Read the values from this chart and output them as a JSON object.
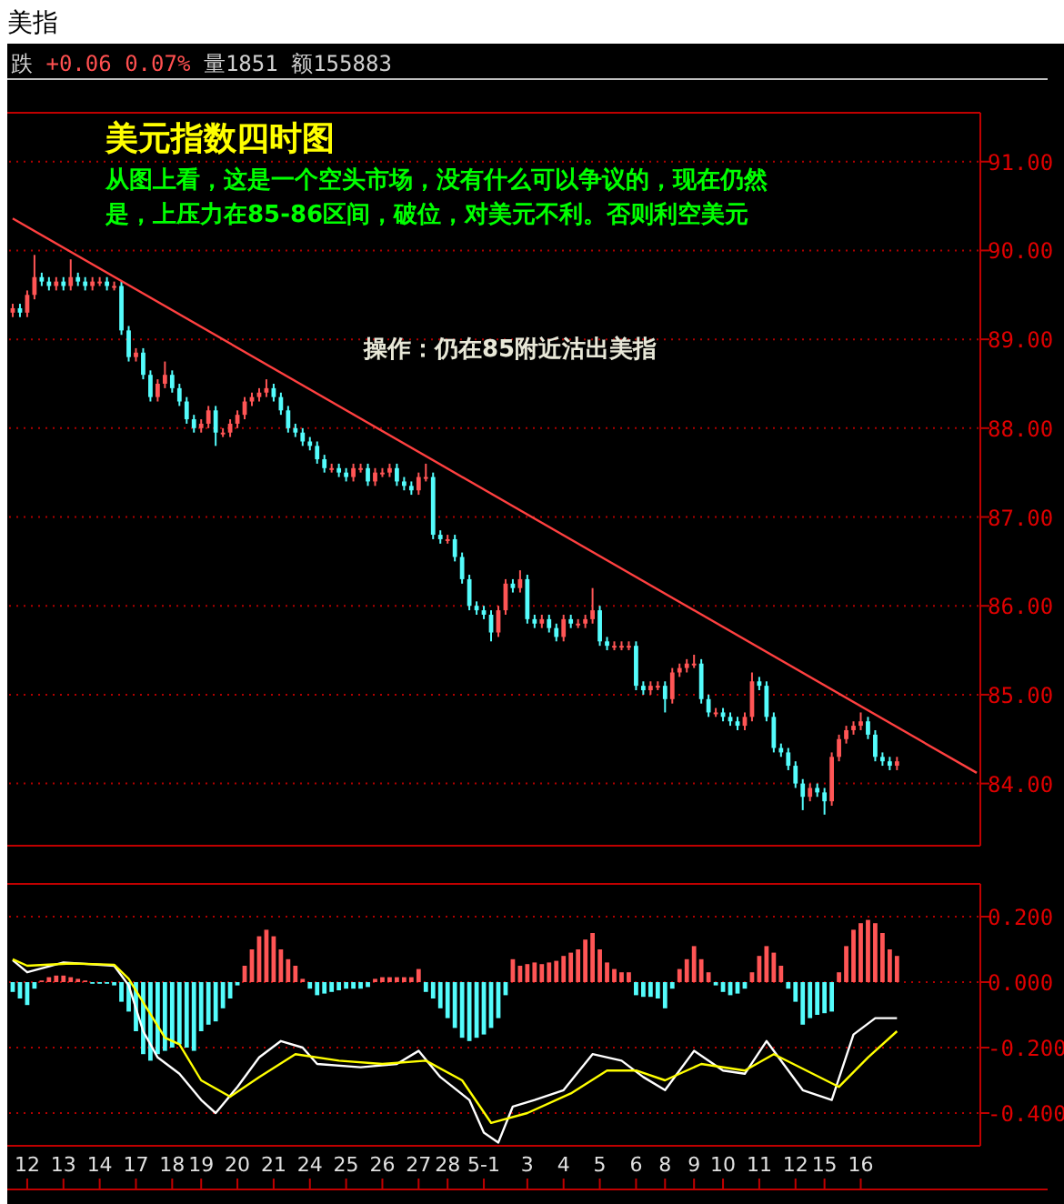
{
  "chart_data": [
    {
      "type": "candlestick",
      "title": "美指",
      "subtitle": "跌 +0.06 0.07% 量1851 额155883",
      "annotations": [
        "美元指数四时图",
        "从图上看，这是一个空头市场，没有什么可以争议的，现在仍然",
        "是，上压力在85-86区间，破位，对美元不利。否则利空美元",
        "操作：仍在85附近沽出美指"
      ],
      "ylim": [
        83.3,
        91.55
      ],
      "yticks": [
        {
          "value": 84,
          "label": "84.00"
        },
        {
          "value": 85,
          "label": "85.00"
        },
        {
          "value": 86,
          "label": "86.00"
        },
        {
          "value": 87,
          "label": "87.00"
        },
        {
          "value": 88,
          "label": "88.00"
        },
        {
          "value": 89,
          "label": "89.00"
        },
        {
          "value": 90,
          "label": "90.00"
        },
        {
          "value": 91,
          "label": "91.00"
        }
      ],
      "tick_labels": "y",
      "grid": "y",
      "categories": [
        null,
        null,
        null,
        null,
        null,
        null,
        null,
        null,
        null,
        null,
        null,
        null,
        null,
        null,
        null,
        null,
        null,
        null,
        null,
        null,
        null,
        null,
        null,
        null,
        null,
        null,
        null,
        null,
        null,
        null,
        null,
        null,
        null,
        null,
        null,
        null,
        null,
        null,
        null,
        null,
        null,
        null,
        null,
        null,
        null,
        null,
        null,
        null,
        null,
        null,
        null,
        null,
        null,
        null,
        null,
        null,
        null,
        null,
        null,
        null,
        null,
        null,
        null,
        null,
        null,
        null,
        null,
        null,
        null,
        null,
        null,
        null,
        null,
        null,
        null,
        null,
        null,
        null,
        null,
        null,
        null,
        null,
        null,
        null,
        null,
        null,
        null,
        null,
        null,
        null,
        null,
        null,
        null,
        null,
        null,
        null,
        null,
        null,
        null,
        null,
        null,
        null,
        null,
        null,
        null,
        null,
        null,
        null,
        null,
        null,
        null,
        null,
        null,
        null,
        null,
        null,
        null,
        null,
        null,
        null,
        null,
        null,
        null,
        null,
        null,
        null,
        null,
        null,
        null,
        null,
        null,
        null,
        null,
        null
      ],
      "ohlc": [
        [
          89.3,
          89.4,
          89.25,
          89.35
        ],
        [
          89.35,
          89.4,
          89.25,
          89.3
        ],
        [
          89.3,
          89.55,
          89.25,
          89.5
        ],
        [
          89.5,
          89.95,
          89.45,
          89.7
        ],
        [
          89.7,
          89.75,
          89.6,
          89.65
        ],
        [
          89.65,
          89.7,
          89.55,
          89.6
        ],
        [
          89.6,
          89.7,
          89.55,
          89.65
        ],
        [
          89.65,
          89.7,
          89.55,
          89.6
        ],
        [
          89.6,
          89.9,
          89.55,
          89.7
        ],
        [
          89.7,
          89.75,
          89.6,
          89.65
        ],
        [
          89.65,
          89.7,
          89.55,
          89.6
        ],
        [
          89.6,
          89.7,
          89.55,
          89.65
        ],
        [
          89.65,
          89.7,
          89.6,
          89.65
        ],
        [
          89.65,
          89.7,
          89.55,
          89.6
        ],
        [
          89.6,
          89.65,
          89.55,
          89.6
        ],
        [
          89.6,
          89.65,
          89.05,
          89.1
        ],
        [
          89.1,
          89.15,
          88.75,
          88.8
        ],
        [
          88.8,
          88.9,
          88.75,
          88.85
        ],
        [
          88.85,
          88.9,
          88.55,
          88.6
        ],
        [
          88.6,
          88.65,
          88.3,
          88.35
        ],
        [
          88.35,
          88.55,
          88.3,
          88.5
        ],
        [
          88.5,
          88.75,
          88.45,
          88.6
        ],
        [
          88.6,
          88.65,
          88.4,
          88.45
        ],
        [
          88.45,
          88.5,
          88.25,
          88.3
        ],
        [
          88.3,
          88.35,
          88.05,
          88.1
        ],
        [
          88.1,
          88.15,
          87.95,
          88.0
        ],
        [
          88.0,
          88.1,
          87.95,
          88.05
        ],
        [
          88.05,
          88.25,
          88.0,
          88.2
        ],
        [
          88.2,
          88.25,
          87.8,
          87.95
        ],
        [
          87.95,
          88.0,
          87.9,
          87.95
        ],
        [
          87.95,
          88.1,
          87.9,
          88.05
        ],
        [
          88.05,
          88.2,
          88.0,
          88.15
        ],
        [
          88.15,
          88.35,
          88.1,
          88.3
        ],
        [
          88.3,
          88.4,
          88.25,
          88.35
        ],
        [
          88.35,
          88.45,
          88.3,
          88.4
        ],
        [
          88.4,
          88.55,
          88.35,
          88.45
        ],
        [
          88.45,
          88.5,
          88.3,
          88.35
        ],
        [
          88.35,
          88.4,
          88.15,
          88.2
        ],
        [
          88.2,
          88.25,
          87.95,
          88.0
        ],
        [
          88.0,
          88.05,
          87.9,
          87.95
        ],
        [
          87.95,
          88.0,
          87.8,
          87.85
        ],
        [
          87.85,
          87.9,
          87.75,
          87.8
        ],
        [
          87.8,
          87.85,
          87.6,
          87.65
        ],
        [
          87.65,
          87.7,
          87.5,
          87.55
        ],
        [
          87.55,
          87.6,
          87.5,
          87.55
        ],
        [
          87.55,
          87.6,
          87.45,
          87.5
        ],
        [
          87.5,
          87.55,
          87.4,
          87.45
        ],
        [
          87.45,
          87.6,
          87.4,
          87.55
        ],
        [
          87.55,
          87.6,
          87.5,
          87.55
        ],
        [
          87.55,
          87.6,
          87.35,
          87.4
        ],
        [
          87.4,
          87.55,
          87.35,
          87.5
        ],
        [
          87.5,
          87.55,
          87.45,
          87.5
        ],
        [
          87.5,
          87.6,
          87.45,
          87.55
        ],
        [
          87.55,
          87.6,
          87.35,
          87.4
        ],
        [
          87.4,
          87.45,
          87.3,
          87.35
        ],
        [
          87.35,
          87.4,
          87.25,
          87.3
        ],
        [
          87.3,
          87.5,
          87.25,
          87.45
        ],
        [
          87.45,
          87.6,
          87.4,
          87.45
        ],
        [
          87.45,
          87.5,
          86.75,
          86.8
        ],
        [
          86.8,
          86.85,
          86.7,
          86.75
        ],
        [
          86.75,
          86.8,
          86.7,
          86.75
        ],
        [
          86.75,
          86.8,
          86.5,
          86.55
        ],
        [
          86.55,
          86.6,
          86.25,
          86.3
        ],
        [
          86.3,
          86.35,
          85.95,
          86.0
        ],
        [
          86.0,
          86.05,
          85.9,
          85.95
        ],
        [
          85.95,
          86.0,
          85.85,
          85.9
        ],
        [
          85.9,
          85.95,
          85.6,
          85.7
        ],
        [
          85.7,
          86.0,
          85.65,
          85.95
        ],
        [
          85.95,
          86.3,
          85.9,
          86.25
        ],
        [
          86.25,
          86.3,
          86.15,
          86.2
        ],
        [
          86.2,
          86.4,
          86.15,
          86.3
        ],
        [
          86.3,
          86.35,
          85.8,
          85.85
        ],
        [
          85.85,
          85.9,
          85.75,
          85.8
        ],
        [
          85.8,
          85.9,
          85.75,
          85.85
        ],
        [
          85.85,
          85.9,
          85.7,
          85.75
        ],
        [
          85.75,
          85.8,
          85.6,
          85.65
        ],
        [
          85.65,
          85.9,
          85.6,
          85.85
        ],
        [
          85.85,
          85.9,
          85.75,
          85.8
        ],
        [
          85.8,
          85.85,
          85.75,
          85.8
        ],
        [
          85.8,
          85.9,
          85.75,
          85.85
        ],
        [
          85.85,
          86.2,
          85.8,
          85.95
        ],
        [
          85.95,
          86.0,
          85.55,
          85.6
        ],
        [
          85.6,
          85.65,
          85.5,
          85.55
        ],
        [
          85.55,
          85.6,
          85.5,
          85.55
        ],
        [
          85.55,
          85.6,
          85.5,
          85.55
        ],
        [
          85.55,
          85.6,
          85.5,
          85.55
        ],
        [
          85.55,
          85.6,
          85.05,
          85.1
        ],
        [
          85.1,
          85.15,
          85.0,
          85.05
        ],
        [
          85.05,
          85.15,
          85.0,
          85.1
        ],
        [
          85.1,
          85.15,
          85.05,
          85.1
        ],
        [
          85.1,
          85.15,
          84.8,
          84.95
        ],
        [
          84.95,
          85.3,
          84.9,
          85.25
        ],
        [
          85.25,
          85.35,
          85.2,
          85.3
        ],
        [
          85.3,
          85.4,
          85.25,
          85.35
        ],
        [
          85.35,
          85.45,
          85.3,
          85.35
        ],
        [
          85.35,
          85.4,
          84.9,
          84.95
        ],
        [
          84.95,
          85.0,
          84.75,
          84.8
        ],
        [
          84.8,
          84.85,
          84.75,
          84.8
        ],
        [
          84.8,
          84.85,
          84.7,
          84.75
        ],
        [
          84.75,
          84.8,
          84.65,
          84.7
        ],
        [
          84.7,
          84.75,
          84.6,
          84.65
        ],
        [
          84.65,
          84.8,
          84.6,
          84.75
        ],
        [
          84.75,
          85.25,
          84.7,
          85.15
        ],
        [
          85.15,
          85.2,
          85.05,
          85.1
        ],
        [
          85.1,
          85.15,
          84.7,
          84.75
        ],
        [
          84.75,
          84.8,
          84.35,
          84.4
        ],
        [
          84.4,
          84.45,
          84.3,
          84.35
        ],
        [
          84.35,
          84.4,
          84.15,
          84.2
        ],
        [
          84.2,
          84.25,
          83.95,
          84.0
        ],
        [
          84.0,
          84.05,
          83.7,
          83.85
        ],
        [
          83.85,
          84.0,
          83.8,
          83.95
        ],
        [
          83.95,
          84.0,
          83.85,
          83.9
        ],
        [
          83.9,
          83.95,
          83.65,
          83.8
        ],
        [
          83.8,
          84.35,
          83.75,
          84.3
        ],
        [
          84.3,
          84.55,
          84.25,
          84.5
        ],
        [
          84.5,
          84.65,
          84.45,
          84.6
        ],
        [
          84.6,
          84.7,
          84.55,
          84.65
        ],
        [
          84.65,
          84.8,
          84.6,
          84.7
        ],
        [
          84.7,
          84.75,
          84.5,
          84.55
        ],
        [
          84.55,
          84.6,
          84.25,
          84.3
        ],
        [
          84.3,
          84.35,
          84.2,
          84.25
        ],
        [
          84.25,
          84.3,
          84.15,
          84.2
        ],
        [
          84.2,
          84.3,
          84.15,
          84.25
        ],
        null,
        null,
        null,
        null,
        null,
        null,
        null,
        null,
        null,
        null,
        null
      ],
      "series": [
        {
          "type": "line",
          "color": "#ff4040",
          "values": [
            90.36,
            null,
            null,
            null,
            null,
            null,
            null,
            null,
            null,
            null,
            null,
            null,
            null,
            null,
            null,
            null,
            null,
            null,
            null,
            null,
            null,
            null,
            null,
            null,
            null,
            null,
            null,
            null,
            null,
            null,
            null,
            null,
            null,
            null,
            null,
            null,
            null,
            null,
            null,
            null,
            null,
            null,
            null,
            null,
            null,
            null,
            null,
            null,
            null,
            null,
            null,
            null,
            null,
            null,
            null,
            null,
            null,
            null,
            null,
            null,
            null,
            null,
            null,
            null,
            null,
            null,
            null,
            null,
            null,
            null,
            null,
            null,
            null,
            null,
            null,
            null,
            null,
            null,
            null,
            null,
            null,
            null,
            null,
            null,
            null,
            null,
            null,
            null,
            null,
            null,
            null,
            null,
            null,
            null,
            null,
            null,
            null,
            null,
            null,
            null,
            null,
            null,
            null,
            null,
            null,
            null,
            null,
            null,
            null,
            null,
            null,
            null,
            null,
            null,
            null,
            null,
            null,
            null,
            null,
            null,
            null,
            null,
            null,
            null,
            null,
            null,
            null,
            null,
            null,
            null,
            null,
            null,
            null,
            84.12
          ]
        }
      ]
    },
    {
      "type": "bar",
      "ylim": [
        -0.5,
        0.3
      ],
      "yticks": [
        {
          "value": 0.2,
          "label": "0.200"
        },
        {
          "value": 0,
          "label": "0.000"
        },
        {
          "value": -0.2,
          "label": "-0.200"
        },
        {
          "value": -0.4,
          "label": "-0.400"
        }
      ],
      "grid": "y",
      "categories": [
        null,
        null,
        "12",
        null,
        null,
        null,
        null,
        "13",
        null,
        null,
        null,
        null,
        "14",
        null,
        null,
        null,
        null,
        "17",
        null,
        null,
        null,
        null,
        "18",
        null,
        null,
        null,
        "19",
        null,
        null,
        null,
        null,
        "20",
        null,
        null,
        null,
        null,
        "21",
        null,
        null,
        null,
        null,
        "24",
        null,
        null,
        null,
        null,
        "25",
        null,
        null,
        null,
        null,
        "26",
        null,
        null,
        null,
        null,
        "27",
        null,
        null,
        null,
        "28",
        null,
        null,
        null,
        null,
        "5-1",
        null,
        null,
        null,
        null,
        null,
        "3",
        null,
        null,
        null,
        null,
        "4",
        null,
        null,
        null,
        null,
        "5",
        null,
        null,
        null,
        null,
        "6",
        null,
        null,
        null,
        "8",
        null,
        null,
        null,
        "9",
        null,
        null,
        null,
        "10",
        null,
        null,
        null,
        null,
        "11",
        null,
        null,
        null,
        null,
        "12",
        null,
        null,
        null,
        "15",
        null,
        null,
        null,
        null,
        "16",
        null,
        null,
        null,
        null,
        null,
        null,
        null,
        null,
        null,
        null,
        null,
        null,
        null,
        null,
        null,
        null
      ],
      "series": [
        {
          "type": "bar",
          "values": [
            -0.03,
            -0.05,
            -0.07,
            -0.02,
            0.005,
            0.015,
            0.02,
            0.02,
            0.015,
            0.01,
            0.005,
            -0.005,
            -0.005,
            -0.005,
            -0.01,
            -0.06,
            -0.09,
            -0.15,
            -0.22,
            -0.24,
            -0.22,
            -0.21,
            -0.2,
            -0.19,
            -0.2,
            -0.21,
            -0.15,
            -0.13,
            -0.12,
            -0.08,
            -0.05,
            -0.01,
            0.05,
            0.1,
            0.14,
            0.16,
            0.14,
            0.1,
            0.07,
            0.05,
            0.01,
            -0.02,
            -0.04,
            -0.035,
            -0.03,
            -0.025,
            -0.02,
            -0.02,
            -0.02,
            -0.015,
            0.01,
            0.015,
            0.015,
            0.015,
            0.015,
            0.015,
            0.04,
            -0.03,
            -0.05,
            -0.08,
            -0.11,
            -0.14,
            -0.17,
            -0.18,
            -0.17,
            -0.16,
            -0.14,
            -0.11,
            -0.04,
            0.07,
            0.05,
            0.055,
            0.06,
            0.055,
            0.06,
            0.065,
            0.08,
            0.09,
            0.1,
            0.13,
            0.15,
            0.1,
            0.06,
            0.04,
            0.03,
            0.03,
            -0.04,
            -0.045,
            -0.045,
            -0.05,
            -0.08,
            -0.02,
            0.04,
            0.07,
            0.11,
            0.07,
            0.03,
            -0.01,
            -0.03,
            -0.04,
            -0.035,
            -0.02,
            0.03,
            0.08,
            0.11,
            0.09,
            0.05,
            -0.02,
            -0.06,
            -0.13,
            -0.11,
            -0.1,
            -0.095,
            -0.09,
            0.03,
            0.11,
            0.16,
            0.18,
            0.19,
            0.18,
            0.15,
            0.1,
            0.08,
            null,
            null,
            null,
            null,
            null,
            null,
            null,
            null,
            null,
            null,
            null
          ],
          "colors": [
            "#54fcfc",
            "#54fcfc",
            "#54fcfc",
            "#54fcfc",
            "#ff5555",
            "#ff5555",
            "#ff5555",
            "#ff5555",
            "#ff5555",
            "#ff5555",
            "#ff5555",
            "#54fcfc",
            "#54fcfc",
            "#54fcfc",
            "#54fcfc",
            "#54fcfc",
            "#54fcfc",
            "#54fcfc",
            "#54fcfc",
            "#54fcfc",
            "#54fcfc",
            "#54fcfc",
            "#54fcfc",
            "#54fcfc",
            "#54fcfc",
            "#54fcfc",
            "#54fcfc",
            "#54fcfc",
            "#54fcfc",
            "#54fcfc",
            "#54fcfc",
            "#54fcfc",
            "#ff5555",
            "#ff5555",
            "#ff5555",
            "#ff5555",
            "#ff5555",
            "#ff5555",
            "#ff5555",
            "#ff5555",
            "#ff5555",
            "#54fcfc",
            "#54fcfc",
            "#54fcfc",
            "#54fcfc",
            "#54fcfc",
            "#54fcfc",
            "#54fcfc",
            "#54fcfc",
            "#54fcfc",
            "#ff5555",
            "#ff5555",
            "#ff5555",
            "#ff5555",
            "#ff5555",
            "#ff5555",
            "#ff5555",
            "#54fcfc",
            "#54fcfc",
            "#54fcfc",
            "#54fcfc",
            "#54fcfc",
            "#54fcfc",
            "#54fcfc",
            "#54fcfc",
            "#54fcfc",
            "#54fcfc",
            "#54fcfc",
            "#54fcfc",
            "#ff5555",
            "#ff5555",
            "#ff5555",
            "#ff5555",
            "#ff5555",
            "#ff5555",
            "#ff5555",
            "#ff5555",
            "#ff5555",
            "#ff5555",
            "#ff5555",
            "#ff5555",
            "#ff5555",
            "#ff5555",
            "#ff5555",
            "#ff5555",
            "#ff5555",
            "#54fcfc",
            "#54fcfc",
            "#54fcfc",
            "#54fcfc",
            "#54fcfc",
            "#54fcfc",
            "#ff5555",
            "#ff5555",
            "#ff5555",
            "#ff5555",
            "#ff5555",
            "#54fcfc",
            "#54fcfc",
            "#54fcfc",
            "#54fcfc",
            "#54fcfc",
            "#ff5555",
            "#ff5555",
            "#ff5555",
            "#ff5555",
            "#ff5555",
            "#54fcfc",
            "#54fcfc",
            "#54fcfc",
            "#54fcfc",
            "#54fcfc",
            "#54fcfc",
            "#54fcfc",
            "#ff5555",
            "#ff5555",
            "#ff5555",
            "#ff5555",
            "#ff5555",
            "#ff5555",
            "#ff5555",
            "#ff5555",
            "#ff5555",
            null,
            null,
            null,
            null,
            null,
            null,
            null,
            null,
            null,
            null,
            null
          ]
        },
        {
          "type": "line",
          "color": "#ffffff",
          "values": [
            0.067,
            null,
            0.03,
            null,
            null,
            null,
            null,
            0.06,
            null,
            null,
            null,
            null,
            null,
            null,
            0.05,
            null,
            -0.01,
            null,
            -0.15,
            null,
            -0.23,
            null,
            null,
            -0.28,
            null,
            null,
            -0.36,
            null,
            -0.4,
            null,
            null,
            -0.32,
            null,
            null,
            -0.23,
            null,
            null,
            -0.18,
            null,
            null,
            -0.2,
            null,
            -0.25,
            null,
            null,
            null,
            null,
            null,
            -0.26,
            null,
            null,
            null,
            null,
            -0.25,
            null,
            null,
            -0.21,
            null,
            null,
            -0.29,
            null,
            null,
            null,
            -0.36,
            null,
            -0.46,
            null,
            -0.49,
            null,
            -0.38,
            null,
            null,
            -0.36,
            null,
            null,
            null,
            -0.33,
            null,
            null,
            null,
            -0.22,
            null,
            null,
            null,
            -0.24,
            null,
            null,
            -0.29,
            null,
            null,
            -0.33,
            null,
            null,
            null,
            -0.21,
            null,
            null,
            null,
            -0.27,
            null,
            null,
            -0.28,
            null,
            null,
            -0.18,
            null,
            null,
            null,
            null,
            -0.33,
            null,
            null,
            null,
            -0.36,
            null,
            null,
            -0.16,
            null,
            null,
            -0.11,
            null,
            null,
            -0.11,
            null,
            null,
            null,
            null,
            null,
            null,
            null,
            null,
            null,
            null,
            null
          ]
        },
        {
          "type": "line",
          "color": "#ffff00",
          "values": [
            0.07,
            null,
            0.05,
            null,
            null,
            null,
            null,
            null,
            0.057,
            null,
            null,
            null,
            null,
            null,
            0.053,
            null,
            0.01,
            null,
            null,
            null,
            null,
            -0.17,
            null,
            -0.19,
            null,
            null,
            -0.3,
            null,
            null,
            null,
            -0.35,
            null,
            null,
            null,
            -0.29,
            null,
            null,
            null,
            null,
            -0.22,
            null,
            null,
            null,
            null,
            null,
            -0.24,
            null,
            null,
            null,
            null,
            null,
            -0.25,
            null,
            null,
            null,
            null,
            null,
            -0.24,
            null,
            null,
            null,
            null,
            -0.3,
            null,
            null,
            null,
            -0.43,
            null,
            null,
            null,
            null,
            -0.4,
            null,
            null,
            null,
            null,
            null,
            -0.34,
            null,
            null,
            null,
            null,
            -0.27,
            null,
            null,
            null,
            -0.27,
            null,
            null,
            null,
            -0.3,
            null,
            null,
            null,
            null,
            -0.25,
            null,
            null,
            null,
            null,
            null,
            -0.27,
            null,
            null,
            null,
            -0.22,
            null,
            null,
            null,
            null,
            null,
            null,
            null,
            null,
            -0.32,
            null,
            null,
            null,
            -0.23,
            null,
            null,
            null,
            -0.15,
            null,
            null,
            null,
            null,
            null,
            null,
            null,
            null,
            null,
            null,
            null
          ]
        }
      ]
    }
  ]
}
